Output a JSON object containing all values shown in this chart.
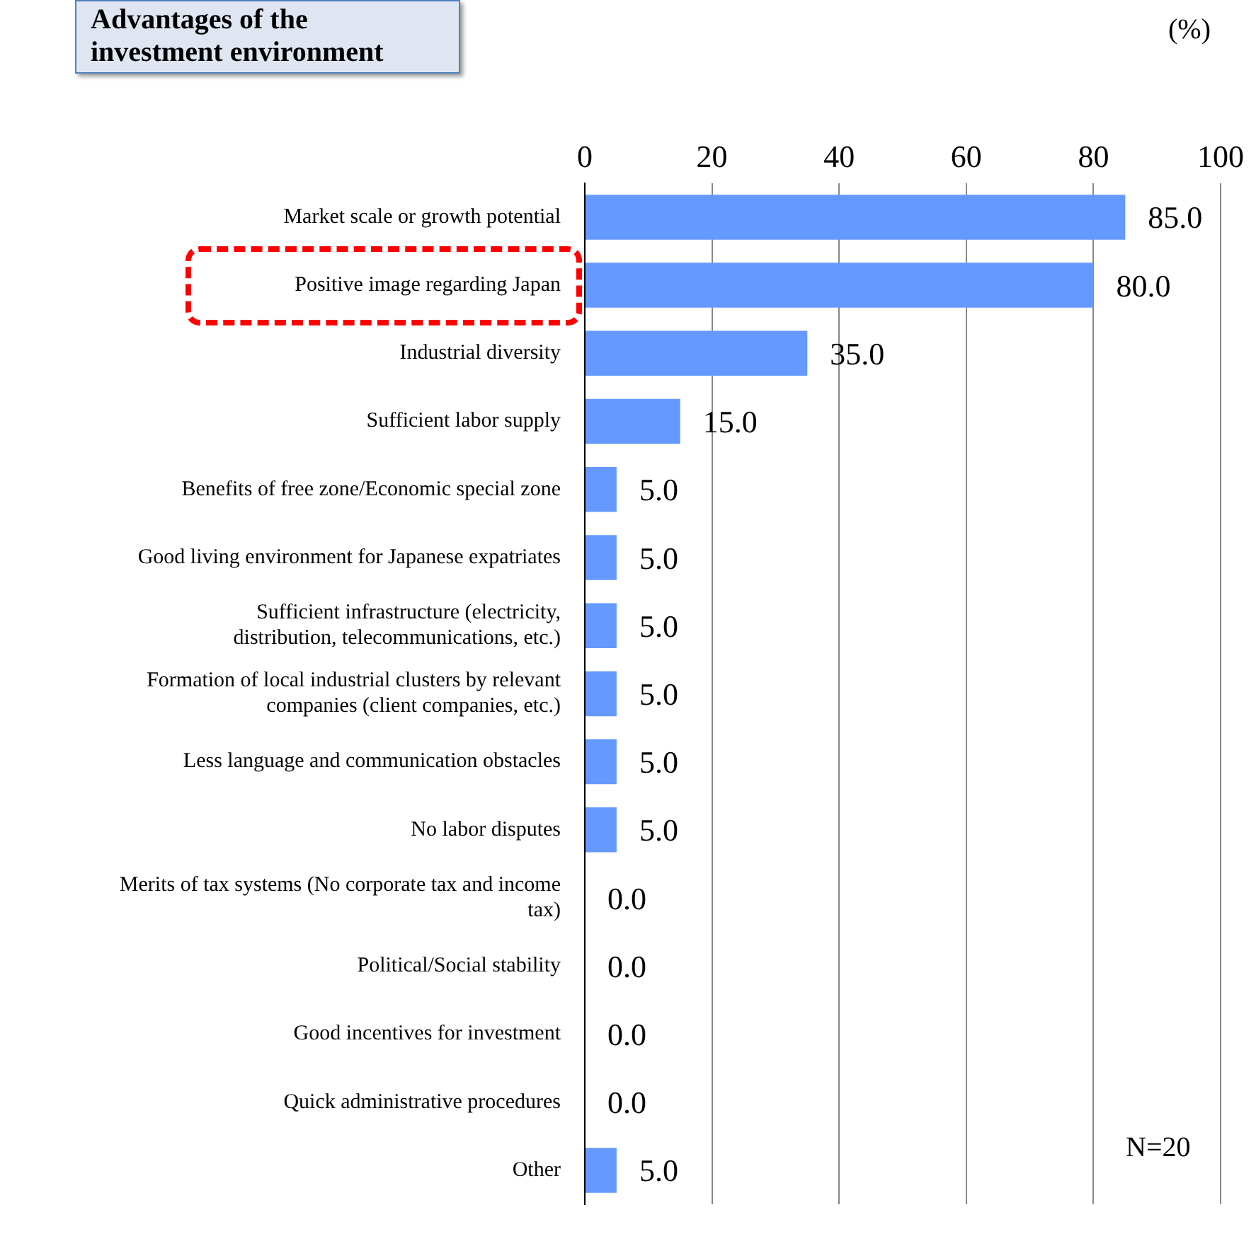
{
  "chart_data": {
    "type": "bar",
    "orientation": "horizontal",
    "title": "Advantages of the investment environment",
    "categories": [
      "Market scale or growth potential",
      "Positive image regarding Japan",
      "Industrial diversity",
      "Sufficient labor supply",
      "Benefits of free zone/Economic special zone",
      "Good living environment for Japanese expatriates",
      "Sufficient infrastructure (electricity, distribution, telecommunications, etc.)",
      "Formation of local industrial clusters by relevant companies (client companies, etc.)",
      "Less language and communication obstacles",
      "No labor disputes",
      "Merits of tax systems (No corporate tax and income tax)",
      "Political/Social stability",
      "Good incentives for investment",
      "Quick administrative procedures",
      "Other"
    ],
    "values": [
      85.0,
      80.0,
      35.0,
      15.0,
      5.0,
      5.0,
      5.0,
      5.0,
      5.0,
      5.0,
      0.0,
      0.0,
      0.0,
      0.0,
      5.0
    ],
    "color": "#6699ff",
    "value_labels": [
      "85.0",
      "80.0",
      "35.0",
      "15.0",
      "5.0",
      "5.0",
      "5.0",
      "5.0",
      "5.0",
      "5.0",
      "0.0",
      "0.0",
      "0.0",
      "0.0",
      "5.0"
    ],
    "xlim": [
      0,
      100
    ],
    "xticks": [
      0,
      20,
      40,
      60,
      80,
      100
    ],
    "grid": "x",
    "legend": false,
    "annotations": [
      "(%)",
      "N=20"
    ]
  }
}
